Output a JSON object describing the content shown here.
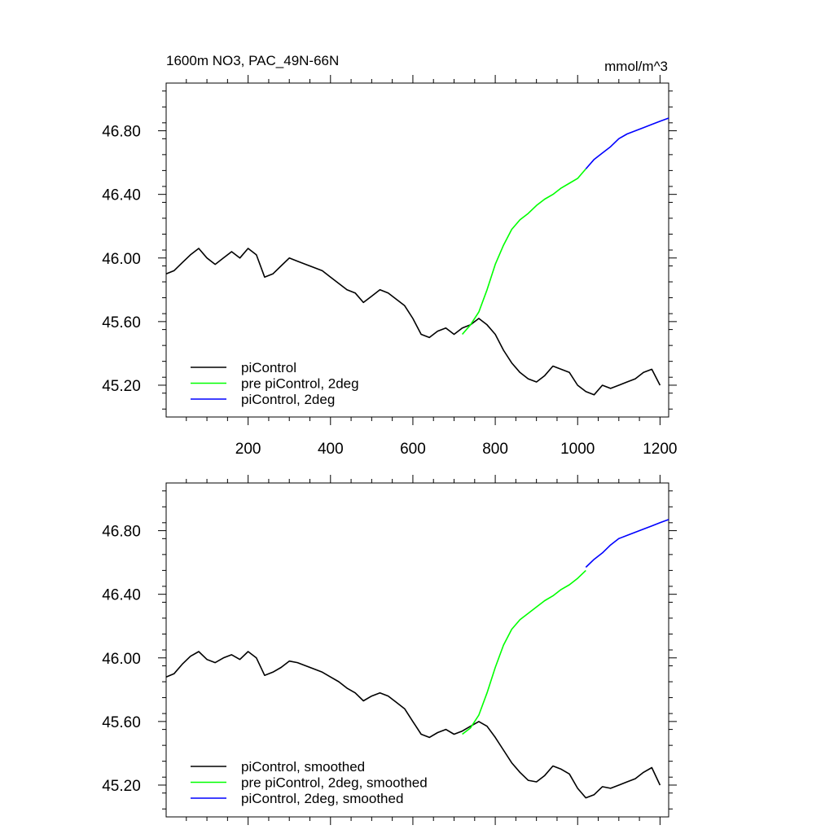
{
  "figure": {
    "title_left": "1600m NO3, PAC_49N-66N",
    "title_right": "mmol/m^3"
  },
  "chart_data": [
    {
      "type": "line",
      "panel": "top",
      "xlim": [
        1,
        1221
      ],
      "ylim": [
        45.0,
        47.1
      ],
      "xticks": [
        200,
        400,
        600,
        800,
        1000,
        1200
      ],
      "xticklabels": [
        "200",
        "400",
        "600",
        "800",
        "1000",
        "1200"
      ],
      "yticks": [
        45.2,
        45.6,
        46.0,
        46.4,
        46.8
      ],
      "yticklabels": [
        "45.20",
        "45.60",
        "46.00",
        "46.40",
        "46.80"
      ],
      "legend_position": "bottom-left",
      "series": [
        {
          "name": "piControl",
          "color": "#000000",
          "x": [
            1,
            20,
            40,
            60,
            80,
            100,
            120,
            140,
            160,
            180,
            200,
            220,
            240,
            260,
            280,
            300,
            320,
            340,
            360,
            380,
            400,
            420,
            440,
            460,
            480,
            500,
            520,
            540,
            560,
            580,
            600,
            620,
            640,
            660,
            680,
            700,
            720,
            740,
            760,
            780,
            800,
            820,
            840,
            860,
            880,
            900,
            920,
            940,
            960,
            980,
            1000,
            1020,
            1040,
            1060,
            1080,
            1100,
            1120,
            1140,
            1160,
            1180,
            1200
          ],
          "y": [
            45.9,
            45.92,
            45.97,
            46.02,
            46.06,
            46.0,
            45.96,
            46.0,
            46.04,
            46.0,
            46.06,
            46.02,
            45.88,
            45.9,
            45.95,
            46.0,
            45.98,
            45.96,
            45.94,
            45.92,
            45.88,
            45.84,
            45.8,
            45.78,
            45.72,
            45.76,
            45.8,
            45.78,
            45.74,
            45.7,
            45.62,
            45.52,
            45.5,
            45.54,
            45.56,
            45.52,
            45.56,
            45.58,
            45.62,
            45.58,
            45.52,
            45.42,
            45.34,
            45.28,
            45.24,
            45.22,
            45.26,
            45.32,
            45.3,
            45.28,
            45.2,
            45.16,
            45.14,
            45.2,
            45.18,
            45.2,
            45.22,
            45.24,
            45.28,
            45.3,
            45.2
          ]
        },
        {
          "name": "pre piControl, 2deg",
          "color": "#00ff00",
          "x": [
            720,
            740,
            760,
            780,
            800,
            820,
            840,
            860,
            880,
            900,
            920,
            940,
            960,
            980,
            1000,
            1020
          ],
          "y": [
            45.52,
            45.58,
            45.66,
            45.8,
            45.96,
            46.08,
            46.18,
            46.24,
            46.28,
            46.33,
            46.37,
            46.4,
            46.44,
            46.47,
            46.5,
            46.56
          ]
        },
        {
          "name": "piControl, 2deg",
          "color": "#0000ff",
          "x": [
            1020,
            1040,
            1060,
            1080,
            1100,
            1120,
            1140,
            1160,
            1180,
            1200,
            1221
          ],
          "y": [
            46.56,
            46.62,
            46.66,
            46.7,
            46.75,
            46.78,
            46.8,
            46.82,
            46.84,
            46.86,
            46.88
          ]
        }
      ]
    },
    {
      "type": "line",
      "panel": "bottom",
      "xlim": [
        1,
        1221
      ],
      "ylim": [
        45.0,
        47.1
      ],
      "xticks": [
        200,
        400,
        600,
        800,
        1000,
        1200
      ],
      "yticks": [
        45.2,
        45.6,
        46.0,
        46.4,
        46.8
      ],
      "yticklabels": [
        "45.20",
        "45.60",
        "46.00",
        "46.40",
        "46.80"
      ],
      "legend_position": "bottom-left",
      "series": [
        {
          "name": "piControl, smoothed",
          "color": "#000000",
          "x": [
            1,
            20,
            40,
            60,
            80,
            100,
            120,
            140,
            160,
            180,
            200,
            220,
            240,
            260,
            280,
            300,
            320,
            340,
            360,
            380,
            400,
            420,
            440,
            460,
            480,
            500,
            520,
            540,
            560,
            580,
            600,
            620,
            640,
            660,
            680,
            700,
            720,
            740,
            760,
            780,
            800,
            820,
            840,
            860,
            880,
            900,
            920,
            940,
            960,
            980,
            1000,
            1020,
            1040,
            1060,
            1080,
            1100,
            1120,
            1140,
            1160,
            1180,
            1200
          ],
          "y": [
            45.88,
            45.9,
            45.96,
            46.01,
            46.04,
            45.99,
            45.97,
            46.0,
            46.02,
            45.99,
            46.04,
            46.0,
            45.89,
            45.91,
            45.94,
            45.98,
            45.97,
            45.95,
            45.93,
            45.91,
            45.88,
            45.85,
            45.81,
            45.78,
            45.73,
            45.76,
            45.78,
            45.76,
            45.72,
            45.68,
            45.6,
            45.52,
            45.5,
            45.53,
            45.55,
            45.52,
            45.54,
            45.57,
            45.6,
            45.57,
            45.5,
            45.42,
            45.34,
            45.28,
            45.23,
            45.22,
            45.26,
            45.32,
            45.3,
            45.27,
            45.18,
            45.12,
            45.14,
            45.19,
            45.18,
            45.2,
            45.22,
            45.24,
            45.28,
            45.31,
            45.2
          ]
        },
        {
          "name": "pre piControl, 2deg, smoothed",
          "color": "#00ff00",
          "x": [
            720,
            740,
            760,
            780,
            800,
            820,
            840,
            860,
            880,
            900,
            920,
            940,
            960,
            980,
            1000,
            1020
          ],
          "y": [
            45.52,
            45.56,
            45.64,
            45.78,
            45.94,
            46.08,
            46.18,
            46.24,
            46.28,
            46.32,
            46.36,
            46.39,
            46.43,
            46.46,
            46.5,
            46.55
          ]
        },
        {
          "name": "piControl, 2deg, smoothed",
          "color": "#0000ff",
          "x": [
            1020,
            1040,
            1060,
            1080,
            1100,
            1120,
            1140,
            1160,
            1180,
            1200,
            1221
          ],
          "y": [
            46.57,
            46.62,
            46.66,
            46.71,
            46.75,
            46.77,
            46.79,
            46.81,
            46.83,
            46.85,
            46.87
          ]
        }
      ]
    }
  ]
}
